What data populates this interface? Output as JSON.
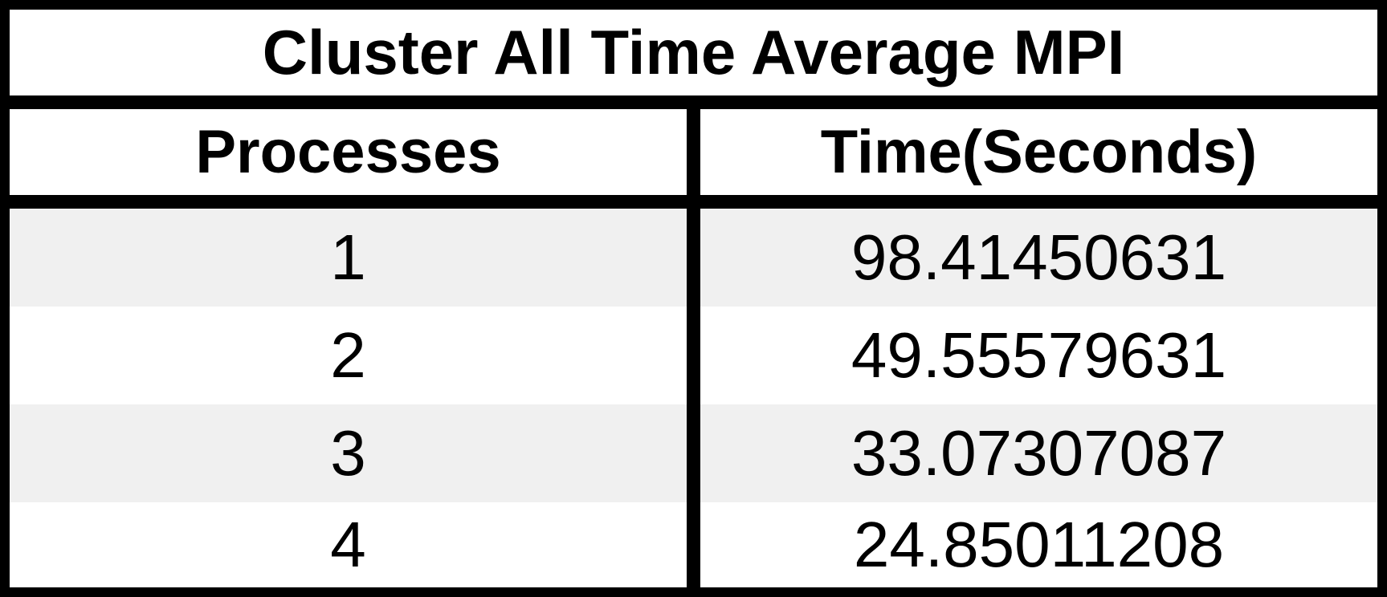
{
  "chart_data": {
    "type": "table",
    "title": "Cluster All Time Average MPI",
    "columns": [
      "Processes",
      "Time(Seconds)"
    ],
    "rows": [
      [
        "1",
        "98.41450631"
      ],
      [
        "2",
        "49.55579631"
      ],
      [
        "3",
        "33.07307087"
      ],
      [
        "4",
        "24.85011208"
      ]
    ]
  },
  "colors": {
    "border": "#000000",
    "row_shade": "#f0f0f0",
    "row_plain": "#ffffff"
  }
}
